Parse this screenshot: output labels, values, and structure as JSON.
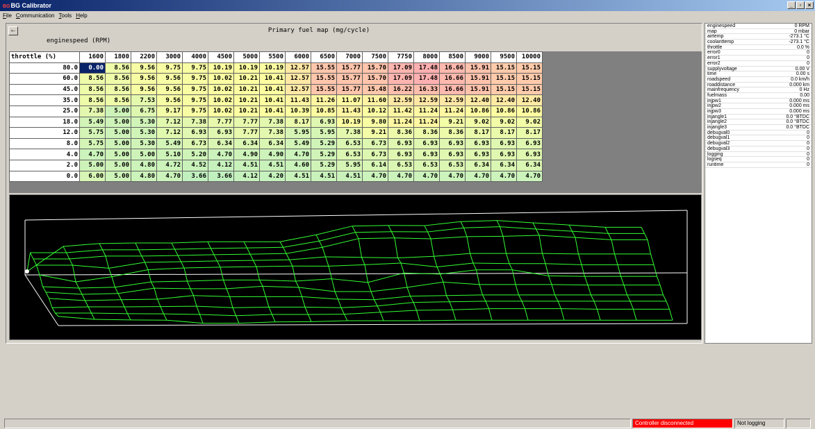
{
  "window": {
    "icon_text": "BG",
    "title": "BG Calibrator",
    "controls": [
      "_",
      "▫",
      "×"
    ]
  },
  "menu": [
    "File",
    "Communication",
    "Tools",
    "Help"
  ],
  "map": {
    "title": "Primary fuel map (mg/cycle)",
    "back_icon": "left-arrow-icon",
    "x_axis_label": "enginespeed (RPM)",
    "y_axis_label": "throttle (%)",
    "columns": [
      "1600",
      "1800",
      "2200",
      "3000",
      "4000",
      "4500",
      "5000",
      "5500",
      "6000",
      "6500",
      "7000",
      "7500",
      "7750",
      "8000",
      "8500",
      "9000",
      "9500",
      "10000"
    ],
    "rows": [
      {
        "label": "80.0",
        "values": [
          "0.00",
          "8.56",
          "9.56",
          "9.75",
          "9.75",
          "10.19",
          "10.19",
          "10.19",
          "12.57",
          "15.55",
          "15.77",
          "15.70",
          "17.09",
          "17.48",
          "16.66",
          "15.91",
          "15.15",
          "15.15"
        ]
      },
      {
        "label": "60.0",
        "values": [
          "8.56",
          "8.56",
          "9.56",
          "9.56",
          "9.75",
          "10.02",
          "10.21",
          "10.41",
          "12.57",
          "15.55",
          "15.77",
          "15.70",
          "17.09",
          "17.48",
          "16.66",
          "15.91",
          "15.15",
          "15.15"
        ]
      },
      {
        "label": "45.0",
        "values": [
          "8.56",
          "8.56",
          "9.56",
          "9.56",
          "9.75",
          "10.02",
          "10.21",
          "10.41",
          "12.57",
          "15.55",
          "15.77",
          "15.48",
          "16.22",
          "16.33",
          "16.66",
          "15.91",
          "15.15",
          "15.15"
        ]
      },
      {
        "label": "35.0",
        "values": [
          "8.56",
          "8.56",
          "7.53",
          "9.56",
          "9.75",
          "10.02",
          "10.21",
          "10.41",
          "11.43",
          "11.26",
          "11.07",
          "11.60",
          "12.59",
          "12.59",
          "12.59",
          "12.40",
          "12.40",
          "12.40"
        ]
      },
      {
        "label": "25.0",
        "values": [
          "7.38",
          "5.00",
          "6.75",
          "9.17",
          "9.75",
          "10.02",
          "10.21",
          "10.41",
          "10.39",
          "10.85",
          "11.43",
          "10.12",
          "11.42",
          "11.24",
          "11.24",
          "10.86",
          "10.86",
          "10.86"
        ]
      },
      {
        "label": "18.0",
        "values": [
          "5.49",
          "5.00",
          "5.30",
          "7.12",
          "7.38",
          "7.77",
          "7.77",
          "7.38",
          "8.17",
          "6.93",
          "10.19",
          "9.80",
          "11.24",
          "11.24",
          "9.21",
          "9.02",
          "9.02",
          "9.02"
        ]
      },
      {
        "label": "12.0",
        "values": [
          "5.75",
          "5.00",
          "5.30",
          "7.12",
          "6.93",
          "6.93",
          "7.77",
          "7.38",
          "5.95",
          "5.95",
          "7.38",
          "9.21",
          "8.36",
          "8.36",
          "8.36",
          "8.17",
          "8.17",
          "8.17"
        ]
      },
      {
        "label": "8.0",
        "values": [
          "5.75",
          "5.00",
          "5.30",
          "5.49",
          "6.73",
          "6.34",
          "6.34",
          "6.34",
          "5.49",
          "5.29",
          "6.53",
          "6.73",
          "6.93",
          "6.93",
          "6.93",
          "6.93",
          "6.93",
          "6.93"
        ]
      },
      {
        "label": "4.0",
        "values": [
          "4.70",
          "5.00",
          "5.00",
          "5.10",
          "5.20",
          "4.70",
          "4.90",
          "4.90",
          "4.70",
          "5.29",
          "6.53",
          "6.73",
          "6.93",
          "6.93",
          "6.93",
          "6.93",
          "6.93",
          "6.93"
        ]
      },
      {
        "label": "2.0",
        "values": [
          "5.00",
          "5.00",
          "4.80",
          "4.72",
          "4.52",
          "4.12",
          "4.51",
          "4.51",
          "4.60",
          "5.29",
          "5.95",
          "6.14",
          "6.53",
          "6.53",
          "6.53",
          "6.34",
          "6.34",
          "6.34"
        ]
      },
      {
        "label": "0.0",
        "values": [
          "6.00",
          "5.00",
          "4.80",
          "4.70",
          "3.66",
          "3.66",
          "4.12",
          "4.20",
          "4.51",
          "4.51",
          "4.51",
          "4.70",
          "4.70",
          "4.70",
          "4.70",
          "4.70",
          "4.70",
          "4.70"
        ]
      }
    ],
    "selected_cell": [
      0,
      0
    ]
  },
  "sensors": [
    {
      "name": "enginespeed",
      "value": "0 RPM"
    },
    {
      "name": "map",
      "value": "0 mbar"
    },
    {
      "name": "airtemp",
      "value": "-273.1 °C"
    },
    {
      "name": "coolanttemp",
      "value": "-273.1 °C"
    },
    {
      "name": "throttle",
      "value": "0.0 %"
    },
    {
      "name": "error0",
      "value": "0"
    },
    {
      "name": "error1",
      "value": "0"
    },
    {
      "name": "error2",
      "value": "0"
    },
    {
      "name": "supplyvoltage",
      "value": "0.00 V"
    },
    {
      "name": "time",
      "value": "0.00 s"
    },
    {
      "name": "roadspeed",
      "value": "0.0 km/h"
    },
    {
      "name": "roaddistance",
      "value": "0.000 km"
    },
    {
      "name": "mainfrequency",
      "value": "0 Hz"
    },
    {
      "name": "fuelmass",
      "value": "0.00"
    },
    {
      "name": "injpw1",
      "value": "0.000 ms"
    },
    {
      "name": "injpw2",
      "value": "0.000 ms"
    },
    {
      "name": "injpw3",
      "value": "0.000 ms"
    },
    {
      "name": "injangle1",
      "value": "0.0 °BTDC"
    },
    {
      "name": "injangle2",
      "value": "0.0 °BTDC"
    },
    {
      "name": "injangle3",
      "value": "0.0 °BTDC"
    },
    {
      "name": "debugval0",
      "value": "0"
    },
    {
      "name": "debugval1",
      "value": "0"
    },
    {
      "name": "debugval2",
      "value": "0"
    },
    {
      "name": "debugval3",
      "value": "0"
    },
    {
      "name": "logging",
      "value": "0"
    },
    {
      "name": "logseq",
      "value": "0"
    },
    {
      "name": "runtime",
      "value": "0"
    }
  ],
  "status": {
    "main": "",
    "connection": "Controller disconnected",
    "logging": "Not logging",
    "extra": ""
  },
  "colors": {
    "low": "#c0f0c0",
    "mid": "#ffffa0",
    "high": "#ffb0b0",
    "wire": "#33ff33",
    "selected": "#0a246a"
  }
}
